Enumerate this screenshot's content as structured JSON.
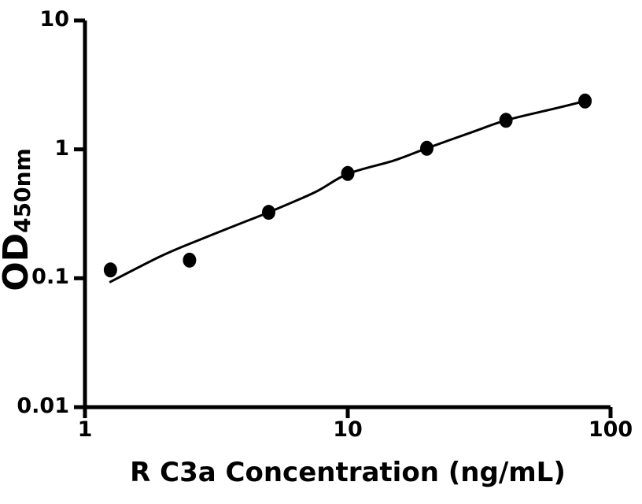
{
  "chart_data": {
    "type": "scatter",
    "title": "",
    "xlabel": "R C3a Concentration (ng/mL)",
    "ylabel_main": "OD",
    "ylabel_sub": "450nm",
    "x_scale": "log",
    "y_scale": "log",
    "xlim": [
      1,
      100
    ],
    "ylim": [
      0.01,
      10
    ],
    "x_tick_values": [
      1,
      10,
      100
    ],
    "x_tick_labels": [
      "1",
      "10",
      "100"
    ],
    "y_tick_values": [
      0.01,
      0.1,
      1,
      10
    ],
    "y_tick_labels": [
      "0.01",
      "0.1",
      "1",
      "10"
    ],
    "grid": false,
    "legend": null,
    "points": {
      "x": [
        1.25,
        2.5,
        5,
        10,
        20,
        40,
        80
      ],
      "y": [
        0.116,
        0.138,
        0.325,
        0.65,
        1.02,
        1.68,
        2.37
      ]
    },
    "fit_curve": [
      [
        1.24,
        0.093
      ],
      [
        1.9,
        0.145
      ],
      [
        2.5,
        0.185
      ],
      [
        3.8,
        0.26
      ],
      [
        5.0,
        0.325
      ],
      [
        7.5,
        0.465
      ],
      [
        10,
        0.645
      ],
      [
        15,
        0.82
      ],
      [
        20,
        1.02
      ],
      [
        30,
        1.37
      ],
      [
        40,
        1.68
      ],
      [
        60,
        2.05
      ],
      [
        80,
        2.37
      ]
    ],
    "colors": {
      "marker": "#000000",
      "line": "#000000",
      "axis": "#000000",
      "text": "#000000",
      "background": "#ffffff"
    }
  }
}
